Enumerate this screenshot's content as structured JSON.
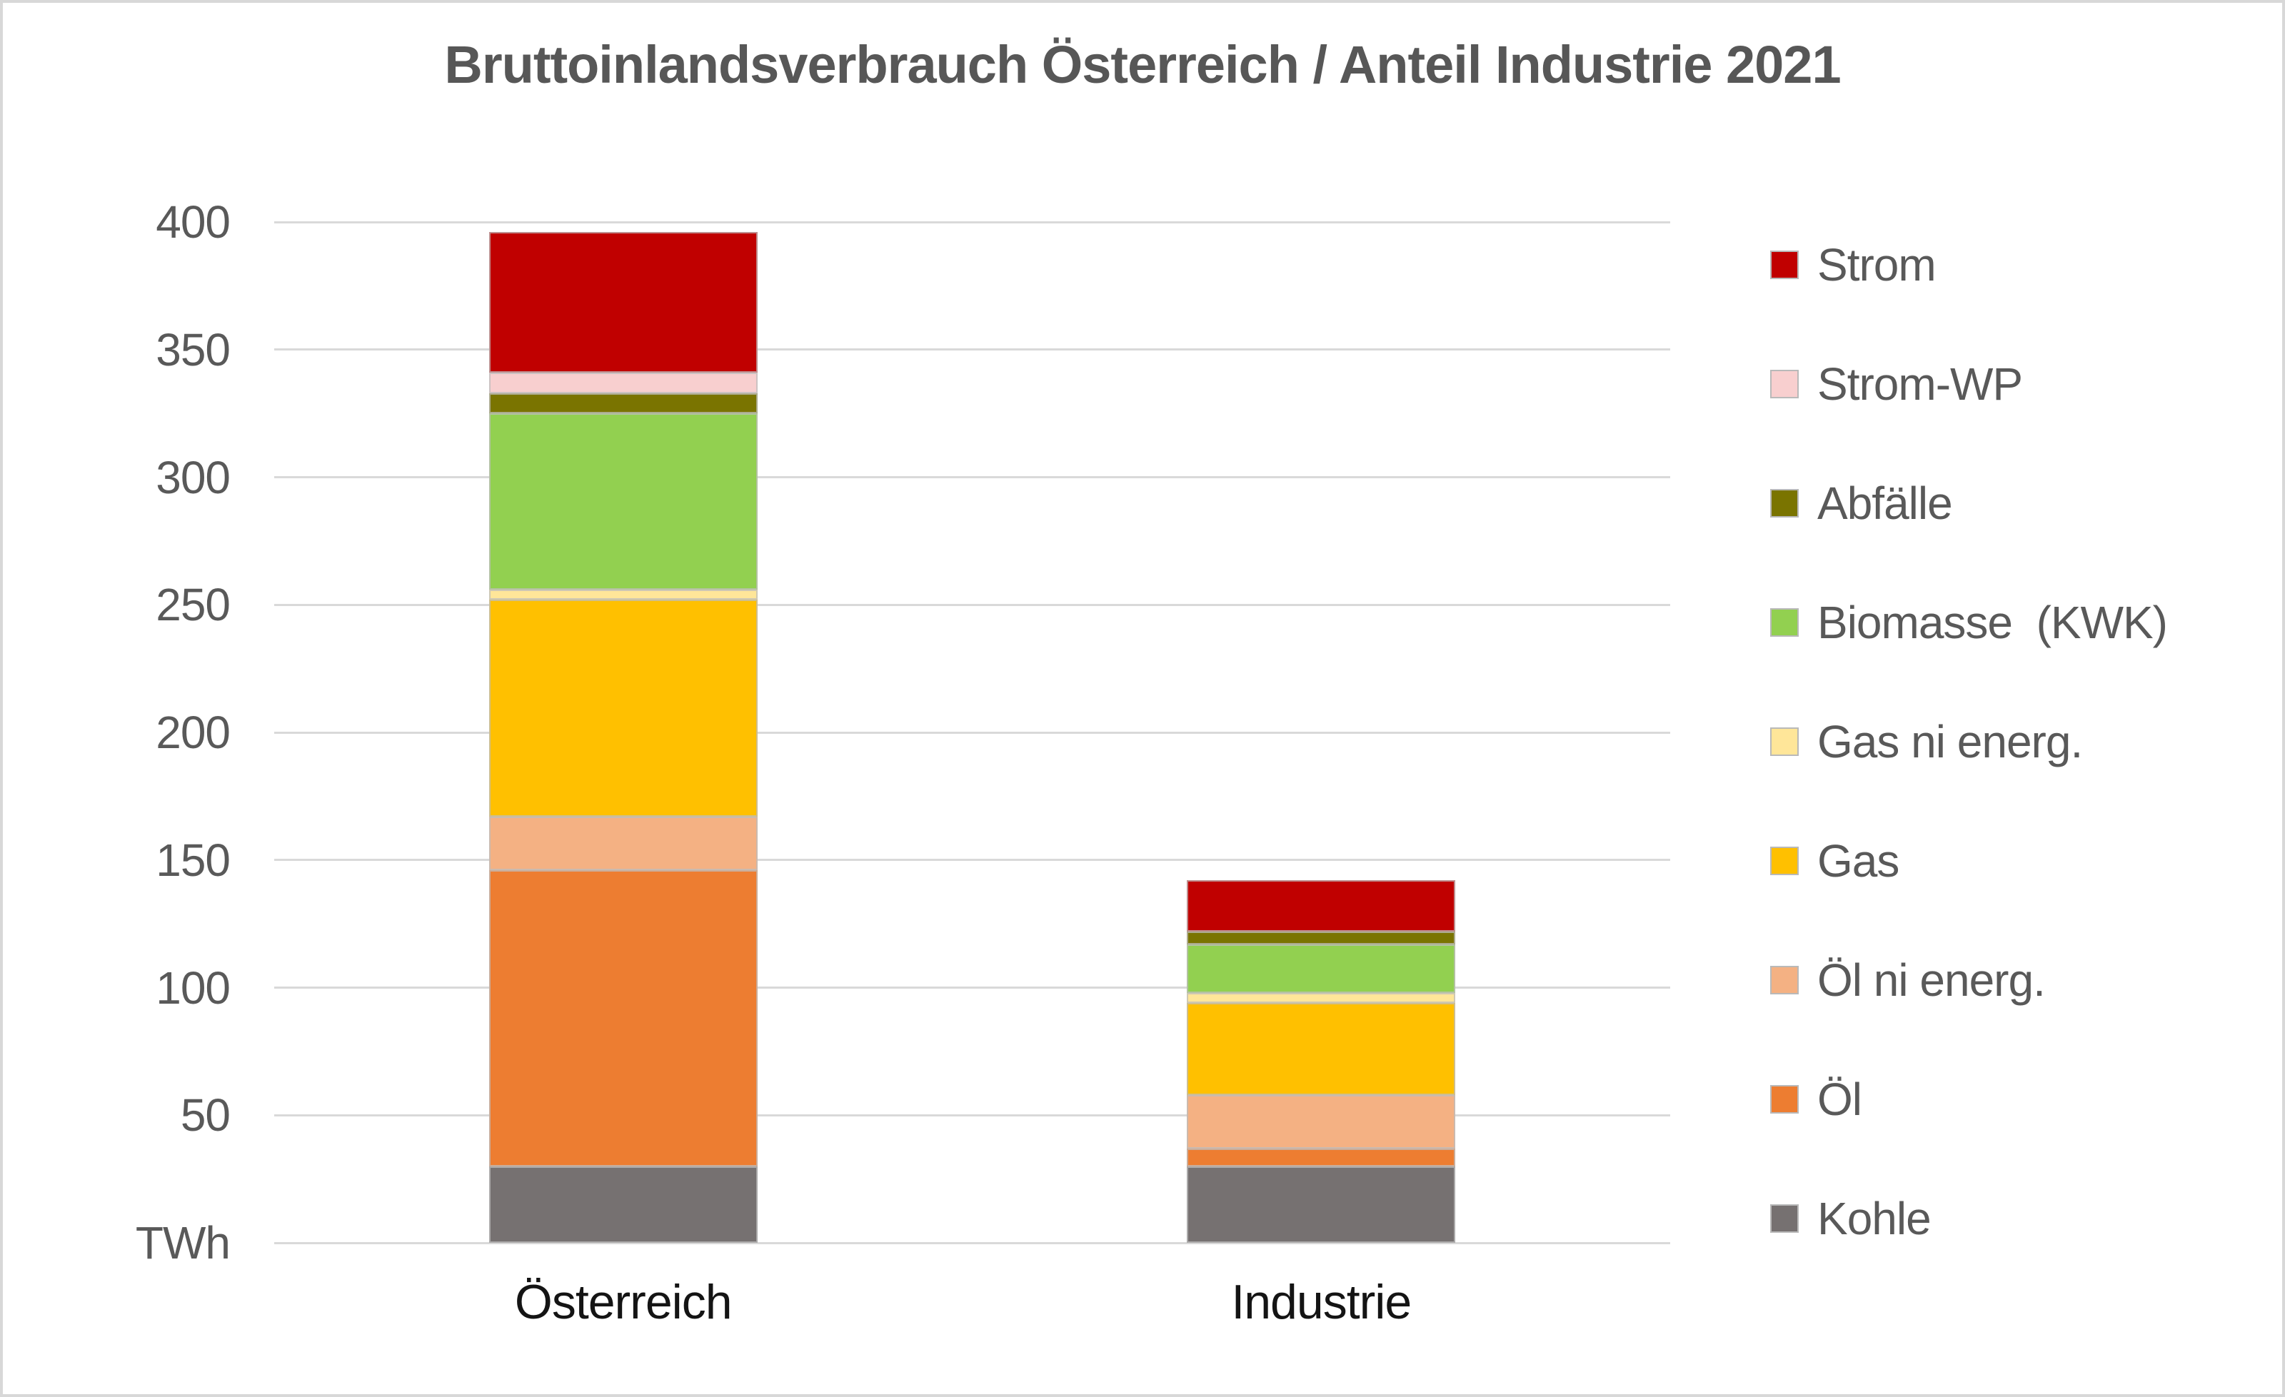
{
  "chart_data": {
    "type": "bar",
    "stacked": true,
    "title": "Bruttoinlandsverbrauch Österreich / Anteil Industrie 2021",
    "unit": "TWh",
    "categories": [
      "Österreich",
      "Industrie"
    ],
    "category_totals": [
      396,
      142
    ],
    "series": [
      {
        "name": "Kohle",
        "color": "#767171",
        "values": [
          30,
          30
        ]
      },
      {
        "name": "Öl",
        "color": "#ED7D31",
        "values": [
          116,
          7
        ]
      },
      {
        "name": "Öl ni energ.",
        "color": "#F4B183",
        "values": [
          21,
          21
        ]
      },
      {
        "name": "Gas",
        "color": "#FFC000",
        "values": [
          85,
          36
        ]
      },
      {
        "name": "Gas ni energ.",
        "color": "#FFE699",
        "values": [
          4,
          4
        ]
      },
      {
        "name": "Biomasse  (KWK)",
        "color": "#92D050",
        "values": [
          69,
          19
        ]
      },
      {
        "name": "Abfälle",
        "color": "#7A7400",
        "values": [
          8,
          5
        ]
      },
      {
        "name": "Strom-WP",
        "color": "#F8CFCF",
        "values": [
          8,
          0
        ]
      },
      {
        "name": "Strom",
        "color": "#C00000",
        "values": [
          55,
          20
        ]
      }
    ],
    "legend_order_top_to_bottom": [
      "Strom",
      "Strom-WP",
      "Abfälle",
      "Biomasse  (KWK)",
      "Gas ni energ.",
      "Gas",
      "Öl ni energ.",
      "Öl",
      "Kohle"
    ],
    "ylim": [
      0,
      400
    ],
    "ytick_step": 50,
    "ytick_labels": [
      "400",
      "350",
      "300",
      "250",
      "200",
      "150",
      "100",
      "50",
      "TWh"
    ],
    "grid": true,
    "gridline_color": "#d9d9d9",
    "legend_position": "right",
    "title_color": "#575757",
    "axis_text_color": "#595959",
    "xlabel_text_color": "#141414"
  },
  "layout_note": ""
}
